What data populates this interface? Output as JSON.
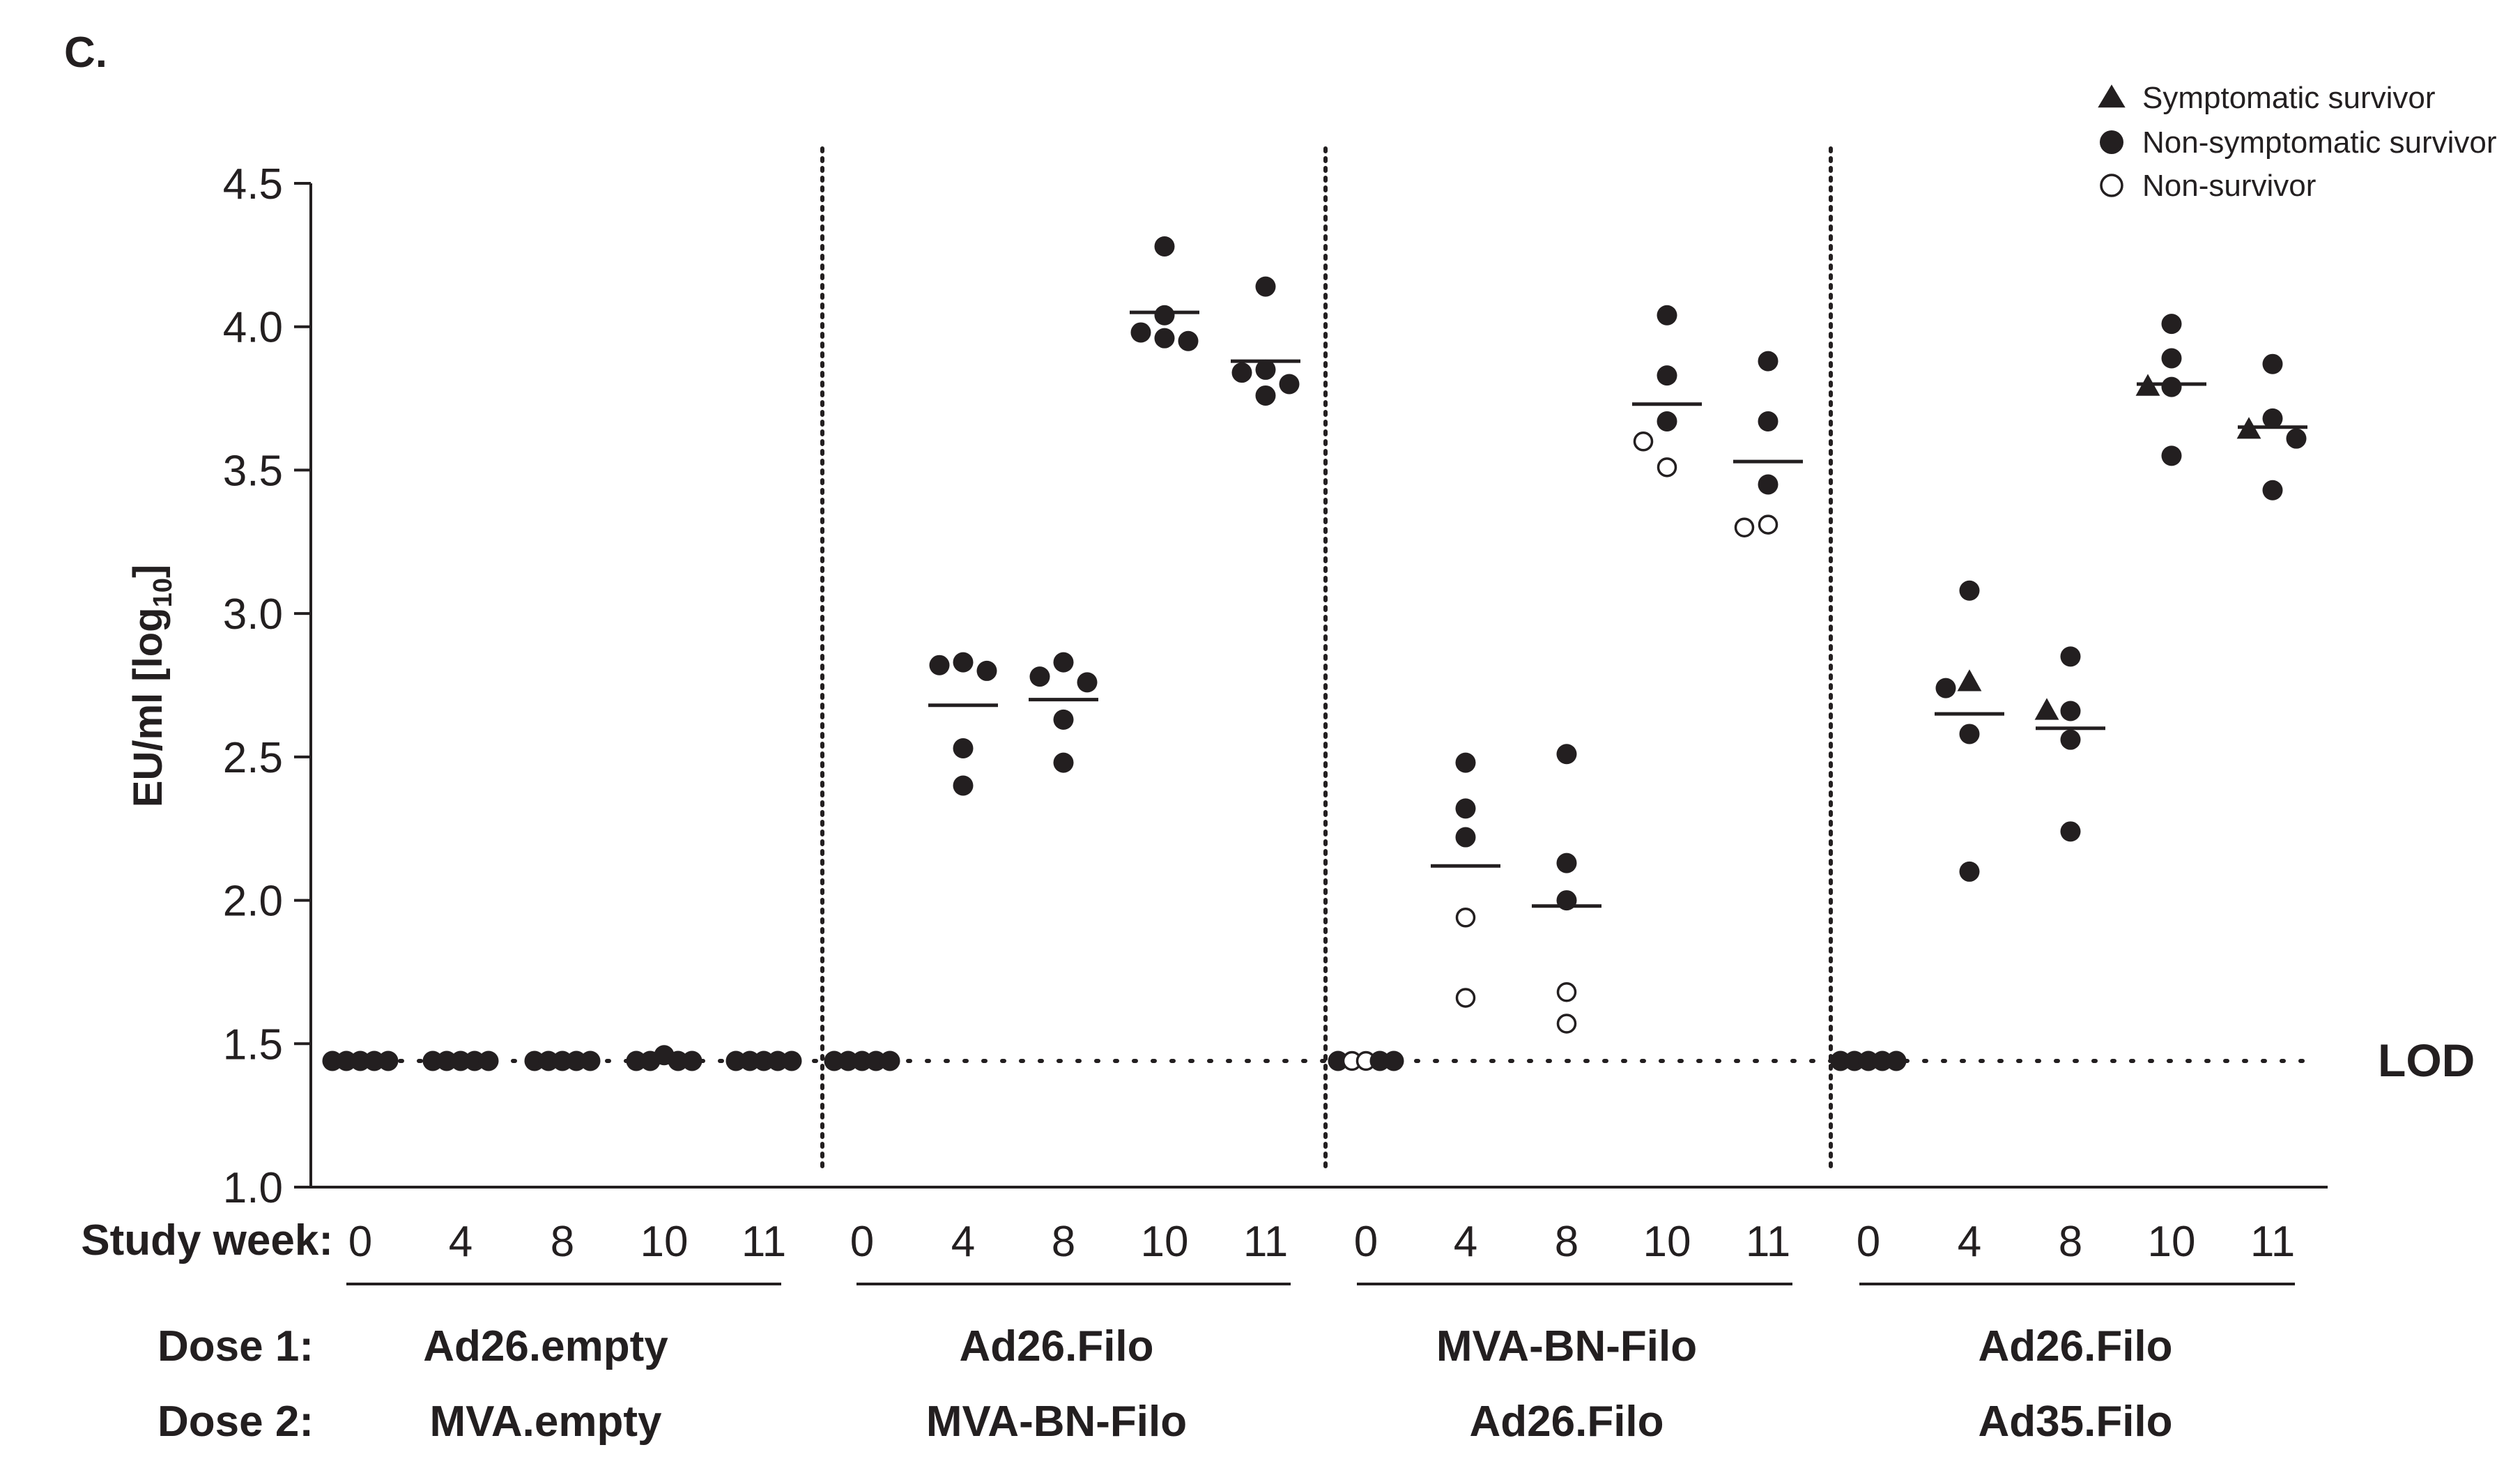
{
  "panel_label": "C.",
  "chart_data": {
    "type": "scatter",
    "ylabel": "EU/ml [log",
    "ylabel_subscript": "10",
    "ylabel_suffix": "]",
    "ylim": [
      1.0,
      4.5
    ],
    "yticks": [
      "1.0",
      "1.5",
      "2.0",
      "2.5",
      "3.0",
      "3.5",
      "4.0",
      "4.5"
    ],
    "lod_value": 1.44,
    "lod_label": "LOD",
    "study_week_label": "Study week:",
    "dose1_label": "Dose 1:",
    "dose2_label": "Dose 2:",
    "legend": [
      {
        "key": "symptomatic",
        "label": "Symptomatic survivor",
        "marker": "filled-triangle"
      },
      {
        "key": "non_symptomatic",
        "label": "Non-symptomatic survivor",
        "marker": "filled-circle"
      },
      {
        "key": "non_survivor",
        "label": "Non-survivor",
        "marker": "open-circle"
      }
    ],
    "groups": [
      {
        "dose1": "Ad26.empty",
        "dose2": "MVA.empty",
        "weeks": [
          {
            "week": "0",
            "median": null,
            "points": [
              {
                "y": 1.44,
                "t": "non_symptomatic"
              },
              {
                "y": 1.44,
                "t": "non_symptomatic"
              },
              {
                "y": 1.44,
                "t": "non_symptomatic"
              },
              {
                "y": 1.44,
                "t": "non_symptomatic"
              },
              {
                "y": 1.44,
                "t": "non_symptomatic"
              }
            ]
          },
          {
            "week": "4",
            "median": null,
            "points": [
              {
                "y": 1.44,
                "t": "non_symptomatic"
              },
              {
                "y": 1.44,
                "t": "non_symptomatic"
              },
              {
                "y": 1.44,
                "t": "non_symptomatic"
              },
              {
                "y": 1.44,
                "t": "non_symptomatic"
              },
              {
                "y": 1.44,
                "t": "non_symptomatic"
              }
            ]
          },
          {
            "week": "8",
            "median": null,
            "points": [
              {
                "y": 1.44,
                "t": "non_symptomatic"
              },
              {
                "y": 1.44,
                "t": "non_symptomatic"
              },
              {
                "y": 1.44,
                "t": "non_symptomatic"
              },
              {
                "y": 1.44,
                "t": "non_symptomatic"
              },
              {
                "y": 1.44,
                "t": "non_symptomatic"
              }
            ]
          },
          {
            "week": "10",
            "median": null,
            "points": [
              {
                "y": 1.44,
                "t": "non_symptomatic"
              },
              {
                "y": 1.44,
                "t": "non_symptomatic"
              },
              {
                "y": 1.46,
                "t": "non_symptomatic"
              },
              {
                "y": 1.44,
                "t": "non_symptomatic"
              },
              {
                "y": 1.44,
                "t": "non_symptomatic"
              }
            ]
          },
          {
            "week": "11",
            "median": null,
            "points": [
              {
                "y": 1.44,
                "t": "non_symptomatic"
              },
              {
                "y": 1.44,
                "t": "non_symptomatic"
              },
              {
                "y": 1.44,
                "t": "non_symptomatic"
              },
              {
                "y": 1.44,
                "t": "non_symptomatic"
              },
              {
                "y": 1.44,
                "t": "non_symptomatic"
              }
            ]
          }
        ]
      },
      {
        "dose1": "Ad26.Filo",
        "dose2": "MVA-BN-Filo",
        "weeks": [
          {
            "week": "0",
            "median": null,
            "points": [
              {
                "y": 1.44,
                "t": "non_symptomatic"
              },
              {
                "y": 1.44,
                "t": "non_symptomatic"
              },
              {
                "y": 1.44,
                "t": "non_symptomatic"
              },
              {
                "y": 1.44,
                "t": "non_symptomatic"
              },
              {
                "y": 1.44,
                "t": "non_symptomatic"
              }
            ]
          },
          {
            "week": "4",
            "median": 2.68,
            "points": [
              {
                "y": 2.82,
                "t": "non_symptomatic"
              },
              {
                "y": 2.83,
                "t": "non_symptomatic"
              },
              {
                "y": 2.8,
                "t": "non_symptomatic"
              },
              {
                "y": 2.53,
                "t": "non_symptomatic"
              },
              {
                "y": 2.4,
                "t": "non_symptomatic"
              }
            ]
          },
          {
            "week": "8",
            "median": 2.7,
            "points": [
              {
                "y": 2.83,
                "t": "non_symptomatic"
              },
              {
                "y": 2.78,
                "t": "non_symptomatic"
              },
              {
                "y": 2.76,
                "t": "non_symptomatic"
              },
              {
                "y": 2.63,
                "t": "non_symptomatic"
              },
              {
                "y": 2.48,
                "t": "non_symptomatic"
              }
            ]
          },
          {
            "week": "10",
            "median": 4.05,
            "points": [
              {
                "y": 4.28,
                "t": "non_symptomatic"
              },
              {
                "y": 4.04,
                "t": "non_symptomatic"
              },
              {
                "y": 3.96,
                "t": "non_symptomatic"
              },
              {
                "y": 3.95,
                "t": "non_symptomatic"
              },
              {
                "y": 3.98,
                "t": "non_symptomatic"
              }
            ]
          },
          {
            "week": "11",
            "median": 3.88,
            "points": [
              {
                "y": 4.14,
                "t": "non_symptomatic"
              },
              {
                "y": 3.85,
                "t": "non_symptomatic"
              },
              {
                "y": 3.84,
                "t": "non_symptomatic"
              },
              {
                "y": 3.8,
                "t": "non_symptomatic"
              },
              {
                "y": 3.76,
                "t": "non_symptomatic"
              }
            ]
          }
        ]
      },
      {
        "dose1": "MVA-BN-Filo",
        "dose2": "Ad26.Filo",
        "weeks": [
          {
            "week": "0",
            "median": null,
            "points": [
              {
                "y": 1.44,
                "t": "non_symptomatic"
              },
              {
                "y": 1.44,
                "t": "non_survivor"
              },
              {
                "y": 1.44,
                "t": "non_survivor"
              },
              {
                "y": 1.44,
                "t": "non_symptomatic"
              },
              {
                "y": 1.44,
                "t": "non_symptomatic"
              }
            ]
          },
          {
            "week": "4",
            "median": 2.12,
            "points": [
              {
                "y": 2.48,
                "t": "non_symptomatic"
              },
              {
                "y": 2.32,
                "t": "non_symptomatic"
              },
              {
                "y": 2.22,
                "t": "non_symptomatic"
              },
              {
                "y": 1.94,
                "t": "non_survivor"
              },
              {
                "y": 1.66,
                "t": "non_survivor"
              }
            ]
          },
          {
            "week": "8",
            "median": 1.98,
            "points": [
              {
                "y": 2.51,
                "t": "non_symptomatic"
              },
              {
                "y": 2.13,
                "t": "non_symptomatic"
              },
              {
                "y": 2.0,
                "t": "non_symptomatic"
              },
              {
                "y": 1.68,
                "t": "non_survivor"
              },
              {
                "y": 1.57,
                "t": "non_survivor"
              }
            ]
          },
          {
            "week": "10",
            "median": 3.73,
            "points": [
              {
                "y": 4.04,
                "t": "non_symptomatic"
              },
              {
                "y": 3.83,
                "t": "non_symptomatic"
              },
              {
                "y": 3.67,
                "t": "non_symptomatic"
              },
              {
                "y": 3.6,
                "t": "non_survivor"
              },
              {
                "y": 3.51,
                "t": "non_survivor"
              }
            ]
          },
          {
            "week": "11",
            "median": 3.53,
            "points": [
              {
                "y": 3.88,
                "t": "non_symptomatic"
              },
              {
                "y": 3.67,
                "t": "non_symptomatic"
              },
              {
                "y": 3.45,
                "t": "non_symptomatic"
              },
              {
                "y": 3.3,
                "t": "non_survivor"
              },
              {
                "y": 3.31,
                "t": "non_survivor"
              }
            ]
          }
        ]
      },
      {
        "dose1": "Ad26.Filo",
        "dose2": "Ad35.Filo",
        "weeks": [
          {
            "week": "0",
            "median": null,
            "points": [
              {
                "y": 1.44,
                "t": "non_symptomatic"
              },
              {
                "y": 1.44,
                "t": "non_symptomatic"
              },
              {
                "y": 1.44,
                "t": "non_symptomatic"
              },
              {
                "y": 1.44,
                "t": "non_symptomatic"
              },
              {
                "y": 1.44,
                "t": "non_symptomatic"
              }
            ]
          },
          {
            "week": "4",
            "median": 2.65,
            "points": [
              {
                "y": 3.08,
                "t": "non_symptomatic"
              },
              {
                "y": 2.74,
                "t": "non_symptomatic"
              },
              {
                "y": 2.76,
                "t": "symptomatic"
              },
              {
                "y": 2.58,
                "t": "non_symptomatic"
              },
              {
                "y": 2.1,
                "t": "non_symptomatic"
              }
            ]
          },
          {
            "week": "8",
            "median": 2.6,
            "points": [
              {
                "y": 2.85,
                "t": "non_symptomatic"
              },
              {
                "y": 2.66,
                "t": "non_symptomatic"
              },
              {
                "y": 2.66,
                "t": "symptomatic"
              },
              {
                "y": 2.56,
                "t": "non_symptomatic"
              },
              {
                "y": 2.24,
                "t": "non_symptomatic"
              }
            ]
          },
          {
            "week": "10",
            "median": 3.8,
            "points": [
              {
                "y": 4.01,
                "t": "non_symptomatic"
              },
              {
                "y": 3.89,
                "t": "non_symptomatic"
              },
              {
                "y": 3.79,
                "t": "non_symptomatic"
              },
              {
                "y": 3.79,
                "t": "symptomatic"
              },
              {
                "y": 3.55,
                "t": "non_symptomatic"
              }
            ]
          },
          {
            "week": "11",
            "median": 3.65,
            "points": [
              {
                "y": 3.87,
                "t": "non_symptomatic"
              },
              {
                "y": 3.68,
                "t": "non_symptomatic"
              },
              {
                "y": 3.64,
                "t": "symptomatic"
              },
              {
                "y": 3.61,
                "t": "non_symptomatic"
              },
              {
                "y": 3.43,
                "t": "non_symptomatic"
              }
            ]
          }
        ]
      }
    ]
  }
}
